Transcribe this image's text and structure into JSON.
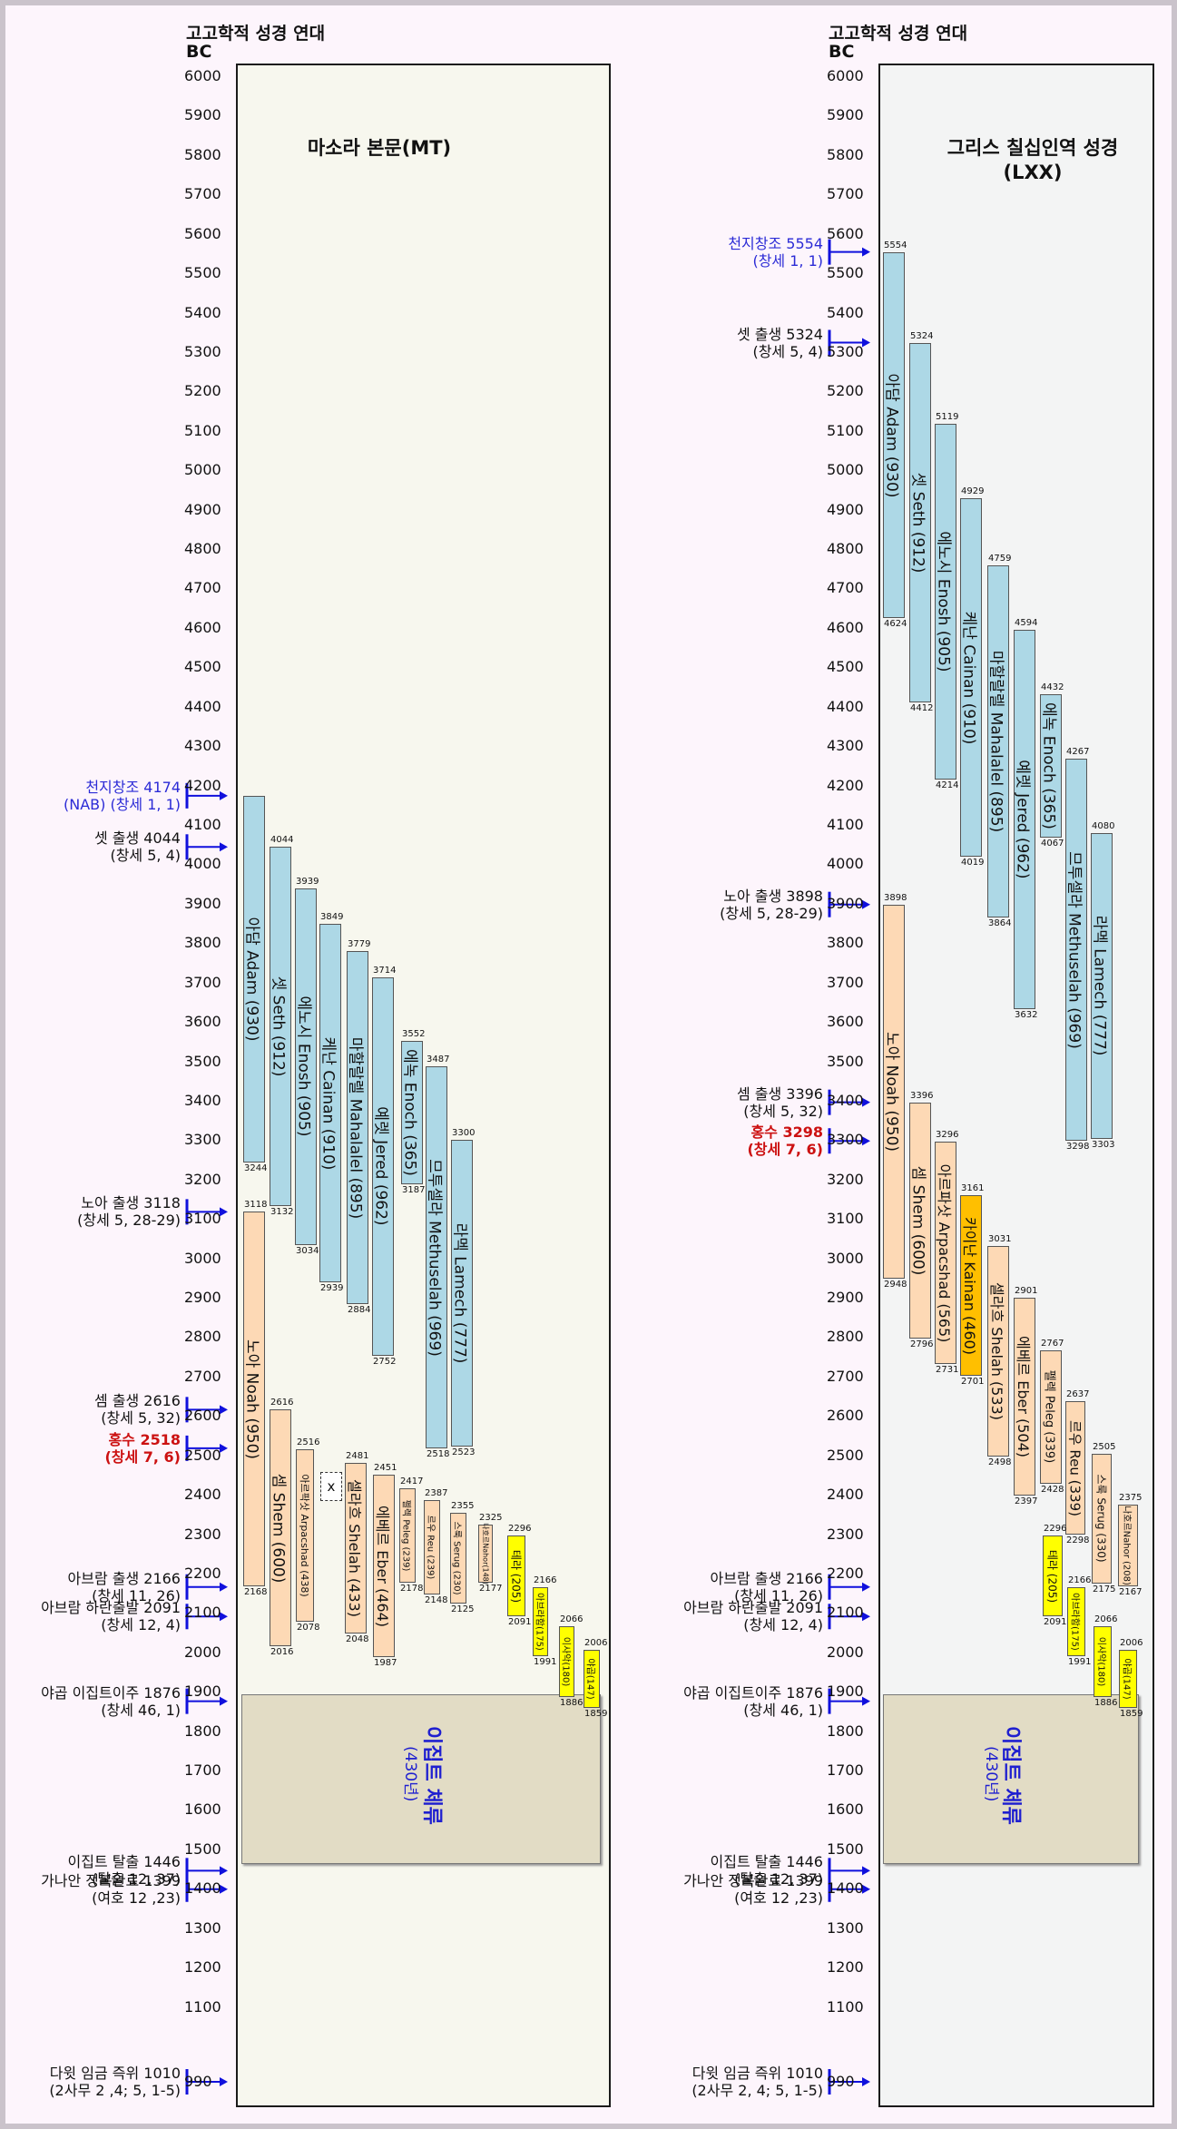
{
  "header": {
    "title": "고고학적 성경 연대",
    "bc": "BC"
  },
  "ticks": [
    6000,
    5900,
    5800,
    5700,
    5600,
    5500,
    5400,
    5300,
    5200,
    5100,
    5000,
    4900,
    4800,
    4700,
    4600,
    4500,
    4400,
    4300,
    4200,
    4100,
    4000,
    3900,
    3800,
    3700,
    3600,
    3500,
    3400,
    3300,
    3200,
    3100,
    3000,
    2900,
    2800,
    2700,
    2600,
    2500,
    2400,
    2300,
    2200,
    2100,
    2000,
    1900,
    1800,
    1700,
    1600,
    1500,
    1400,
    1300,
    1200,
    1100,
    990
  ],
  "colors": {
    "pre_flood": "#add8e6",
    "post_flood": "#fdd9b5",
    "late": "#ffff00",
    "kainan": "#ffbf00",
    "flood_text": "#cc1111",
    "creation_text": "#2b2bd6",
    "egypt_box": "#e2dcc5"
  },
  "panels": [
    {
      "title_lines": [
        "마소라 본문(MT)"
      ],
      "bars": [
        {
          "label": "아담 Adam (930)",
          "start": 4174,
          "end": 3244,
          "color": "pre_flood",
          "start_label": "",
          "end_label": "3244",
          "font": 17
        },
        {
          "label": "셋 Seth (912)",
          "start": 4044,
          "end": 3132,
          "color": "pre_flood",
          "start_label": "4044",
          "end_label": "3132",
          "font": 17
        },
        {
          "label": "에노시 Enosh (905)",
          "start": 3939,
          "end": 3034,
          "color": "pre_flood",
          "start_label": "3939",
          "end_label": "3034",
          "font": 17
        },
        {
          "label": "케난 Cainan (910)",
          "start": 3849,
          "end": 2939,
          "color": "pre_flood",
          "start_label": "3849",
          "end_label": "2939",
          "font": 17
        },
        {
          "label": "마할랄렐 Mahalalel (895)",
          "start": 3779,
          "end": 2884,
          "color": "pre_flood",
          "start_label": "3779",
          "end_label": "2884",
          "font": 17
        },
        {
          "label": "예렛 Jered (962)",
          "start": 3714,
          "end": 2752,
          "color": "pre_flood",
          "start_label": "3714",
          "end_label": "2752",
          "font": 17
        },
        {
          "label": "에녹 Enoch (365)",
          "start": 3552,
          "end": 3187,
          "color": "pre_flood",
          "start_label": "3552",
          "end_label": "3187",
          "font": 17
        },
        {
          "label": "므투셀라 Methuselah (969)",
          "start": 3487,
          "end": 2518,
          "color": "pre_flood",
          "start_label": "3487",
          "end_label": "2518",
          "font": 17
        },
        {
          "label": "라멕 Lamech (777)",
          "start": 3300,
          "end": 2523,
          "color": "pre_flood",
          "start_label": "3300",
          "end_label": "2523",
          "font": 17
        },
        {
          "label": "노아 Noah (950)",
          "start": 3118,
          "end": 2168,
          "color": "post_flood",
          "start_label": "3118",
          "end_label": "2168",
          "font": 17
        },
        {
          "label": "셈 Shem (600)",
          "start": 2616,
          "end": 2016,
          "color": "post_flood",
          "start_label": "2616",
          "end_label": "2016",
          "font": 17
        },
        {
          "label": "아르팍삿 Arpacshad (438)",
          "start": 2516,
          "end": 2078,
          "color": "post_flood",
          "start_label": "2516",
          "end_label": "2078",
          "font": 11
        },
        {
          "label": "셀라흐 Shelah (433)",
          "start": 2481,
          "end": 2048,
          "color": "post_flood",
          "start_label": "2481",
          "end_label": "2048",
          "font": 16
        },
        {
          "label": "에베르 Eber (464)",
          "start": 2451,
          "end": 1987,
          "color": "post_flood",
          "start_label": "2451",
          "end_label": "1987",
          "font": 16
        },
        {
          "label": "펠렉 Peleg (239)",
          "start": 2417,
          "end": 2178,
          "color": "post_flood",
          "start_label": "2417",
          "end_label": "2178",
          "font": 10
        },
        {
          "label": "르우 Reu (239)",
          "start": 2387,
          "end": 2148,
          "color": "post_flood",
          "start_label": "2387",
          "end_label": "2148",
          "font": 10
        },
        {
          "label": "스룩 Serug (230)",
          "start": 2355,
          "end": 2125,
          "color": "post_flood",
          "start_label": "2355",
          "end_label": "2125",
          "font": 10
        },
        {
          "label": "나호르Nahor(148)",
          "start": 2325,
          "end": 2177,
          "color": "post_flood",
          "start_label": "2325",
          "end_label": "2177",
          "font": 8
        },
        {
          "label": "테라 (205)",
          "start": 2296,
          "end": 2091,
          "color": "late",
          "start_label": "2296",
          "end_label": "2091",
          "font": 12
        },
        {
          "label": "아브라함(175)",
          "start": 2166,
          "end": 1991,
          "color": "late",
          "start_label": "2166",
          "end_label": "1991",
          "font": 10
        },
        {
          "label": "이사악(180)",
          "start": 2066,
          "end": 1886,
          "color": "late",
          "start_label": "2066",
          "end_label": "1886",
          "font": 10
        },
        {
          "label": "야곱(147)",
          "start": 2006,
          "end": 1859,
          "color": "late",
          "start_label": "2006",
          "end_label": "1859",
          "font": 10
        }
      ],
      "x_box": {
        "label": "x"
      },
      "events": [
        {
          "lines": [
            "천지창조        4174",
            "(NAB) (창세 1, 1)"
          ],
          "year": 4174,
          "style": "blue"
        },
        {
          "lines": [
            "셋 출생 4044",
            "(창세 5, 4)"
          ],
          "year": 4044,
          "style": ""
        },
        {
          "lines": [
            "노아 출생 3118",
            "(창세 5, 28-29)"
          ],
          "year": 3118,
          "style": ""
        },
        {
          "lines": [
            "셈 출생 2616",
            "(창세 5, 32)"
          ],
          "year": 2616,
          "style": ""
        },
        {
          "lines": [
            "홍수 2518",
            "(창세 7, 6)"
          ],
          "year": 2518,
          "style": "red"
        },
        {
          "lines": [
            "아브람 출생 2166",
            "(창세 11, 26)"
          ],
          "year": 2166,
          "style": ""
        },
        {
          "lines": [
            "아브람 하란출발 2091",
            "(창세 12, 4)"
          ],
          "year": 2091,
          "style": ""
        },
        {
          "lines": [
            "야곱 이집트이주 1876",
            "(창세 46, 1)"
          ],
          "year": 1876,
          "style": ""
        },
        {
          "lines": [
            "이집트 탈출 1446",
            "(탈출 12, 37)"
          ],
          "year": 1446,
          "style": ""
        },
        {
          "lines": [
            "가나안 정복완료 1399",
            "(여호 12 ,23)"
          ],
          "year": 1399,
          "style": ""
        },
        {
          "lines": [
            "다윗 임금 즉위 1010",
            "(2사무 2 ,4; 5, 1-5)"
          ],
          "year": 1010,
          "style": ""
        }
      ],
      "egypt": {
        "title": "이집트 체류",
        "years": "(430년)"
      }
    },
    {
      "title_lines": [
        "그리스 칠십인역 성경",
        "(LXX)"
      ],
      "bars": [
        {
          "label": "아담 Adam (930)",
          "start": 5554,
          "end": 4624,
          "color": "pre_flood",
          "start_label": "5554",
          "end_label": "4624",
          "font": 17
        },
        {
          "label": "셋 Seth (912)",
          "start": 5324,
          "end": 4412,
          "color": "pre_flood",
          "start_label": "5324",
          "end_label": "4412",
          "font": 17
        },
        {
          "label": "에노시 Enosh (905)",
          "start": 5119,
          "end": 4214,
          "color": "pre_flood",
          "start_label": "5119",
          "end_label": "4214",
          "font": 17
        },
        {
          "label": "케난 Cainan (910)",
          "start": 4929,
          "end": 4019,
          "color": "pre_flood",
          "start_label": "4929",
          "end_label": "4019",
          "font": 17
        },
        {
          "label": "마할랄렐 Mahalalel (895)",
          "start": 4759,
          "end": 3864,
          "color": "pre_flood",
          "start_label": "4759",
          "end_label": "3864",
          "font": 17
        },
        {
          "label": "예렛 Jered (962)",
          "start": 4594,
          "end": 3632,
          "color": "pre_flood",
          "start_label": "4594",
          "end_label": "3632",
          "font": 17
        },
        {
          "label": "에녹 Enoch (365)",
          "start": 4432,
          "end": 4067,
          "color": "pre_flood",
          "start_label": "4432",
          "end_label": "4067",
          "font": 17
        },
        {
          "label": "므투셀라 Methuselah (969)",
          "start": 4267,
          "end": 3298,
          "color": "pre_flood",
          "start_label": "4267",
          "end_label": "3298",
          "font": 17
        },
        {
          "label": "라멕 Lamech (777)",
          "start": 4080,
          "end": 3303,
          "color": "pre_flood",
          "start_label": "4080",
          "end_label": "3303",
          "font": 17
        },
        {
          "label": "노아 Noah (950)",
          "start": 3898,
          "end": 2948,
          "color": "post_flood",
          "start_label": "3898",
          "end_label": "2948",
          "font": 17
        },
        {
          "label": "셈 Shem (600)",
          "start": 3396,
          "end": 2796,
          "color": "post_flood",
          "start_label": "3396",
          "end_label": "2796",
          "font": 17
        },
        {
          "label": "아르파삿 Arpacshad (565)",
          "start": 3296,
          "end": 2731,
          "color": "post_flood",
          "start_label": "3296",
          "end_label": "2731",
          "font": 16
        },
        {
          "label": "카이난 Kainan (460)",
          "start": 3161,
          "end": 2701,
          "color": "kainan",
          "start_label": "3161",
          "end_label": "2701",
          "font": 16
        },
        {
          "label": "셀라흐 Shelah (533)",
          "start": 3031,
          "end": 2498,
          "color": "post_flood",
          "start_label": "3031",
          "end_label": "2498",
          "font": 16
        },
        {
          "label": "에베르 Eber (504)",
          "start": 2901,
          "end": 2397,
          "color": "post_flood",
          "start_label": "2901",
          "end_label": "2397",
          "font": 16
        },
        {
          "label": "펠렉 Peleg (339)",
          "start": 2767,
          "end": 2428,
          "color": "post_flood",
          "start_label": "2767",
          "end_label": "2428",
          "font": 13
        },
        {
          "label": "르우 Reu (339)",
          "start": 2637,
          "end": 2298,
          "color": "post_flood",
          "start_label": "2637",
          "end_label": "2298",
          "font": 15
        },
        {
          "label": "스룩 Serug (330)",
          "start": 2505,
          "end": 2175,
          "color": "post_flood",
          "start_label": "2505",
          "end_label": "2175",
          "font": 12
        },
        {
          "label": "나호르Nahor (208)",
          "start": 2375,
          "end": 2167,
          "color": "post_flood",
          "start_label": "2375",
          "end_label": "2167",
          "font": 10
        },
        {
          "label": "테라 (205)",
          "start": 2296,
          "end": 2091,
          "color": "late",
          "start_label": "2296",
          "end_label": "2091",
          "font": 12
        },
        {
          "label": "아브라함(175)",
          "start": 2166,
          "end": 1991,
          "color": "late",
          "start_label": "2166",
          "end_label": "1991",
          "font": 10
        },
        {
          "label": "이사악(180)",
          "start": 2066,
          "end": 1886,
          "color": "late",
          "start_label": "2066",
          "end_label": "1886",
          "font": 10
        },
        {
          "label": "야곱(147)",
          "start": 2006,
          "end": 1859,
          "color": "late",
          "start_label": "2006",
          "end_label": "1859",
          "font": 10
        }
      ],
      "events": [
        {
          "lines": [
            "천지창조 5554",
            "(창세 1, 1)"
          ],
          "year": 5554,
          "style": "blue"
        },
        {
          "lines": [
            "셋 출생 5324",
            "(창세 5, 4)"
          ],
          "year": 5324,
          "style": ""
        },
        {
          "lines": [
            "노아 출생 3898",
            "(창세 5, 28-29)"
          ],
          "year": 3898,
          "style": ""
        },
        {
          "lines": [
            "셈 출생 3396",
            "(창세 5, 32)"
          ],
          "year": 3396,
          "style": ""
        },
        {
          "lines": [
            "홍수 3298",
            "(창세 7, 6)"
          ],
          "year": 3298,
          "style": "red"
        },
        {
          "lines": [
            "아브람 출생 2166",
            "(창세 11, 26)"
          ],
          "year": 2166,
          "style": ""
        },
        {
          "lines": [
            "아브람 하란출발 2091",
            "(창세 12, 4)"
          ],
          "year": 2091,
          "style": ""
        },
        {
          "lines": [
            "야곱 이집트이주 1876",
            "(창세 46, 1)"
          ],
          "year": 1876,
          "style": ""
        },
        {
          "lines": [
            "이집트 탈출 1446",
            "(탈출 12, 37)"
          ],
          "year": 1446,
          "style": ""
        },
        {
          "lines": [
            "가나안 정복완료 1399",
            "(여호 12 ,23)"
          ],
          "year": 1399,
          "style": ""
        },
        {
          "lines": [
            "다윗 임금 즉위 1010",
            "(2사무 2, 4; 5, 1-5)"
          ],
          "year": 1010,
          "style": ""
        }
      ],
      "egypt": {
        "title": "이집트 체류",
        "years": "(430년)"
      }
    }
  ]
}
